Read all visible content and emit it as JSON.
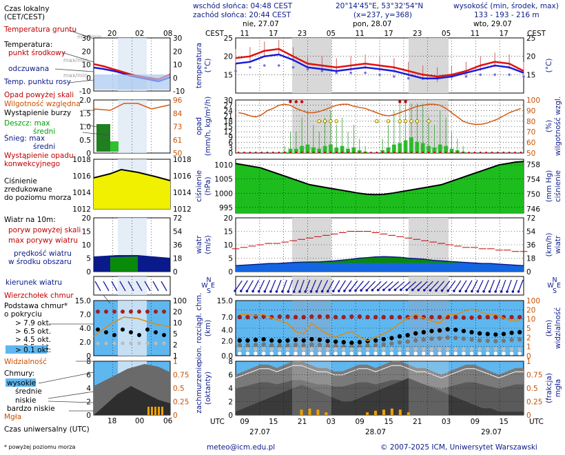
{
  "header": {
    "sunrise": "wschód słońca: 04:48 CEST",
    "sunset": "zachód słońca: 20:44 CEST",
    "coords": "20°14'45\"E, 53°32'54\"N",
    "grid": "(x=237, y=368)",
    "elevation_title": "wysokość (min, środek, max)",
    "elevation_values": "133 - 193 - 216 m"
  },
  "days": [
    "nie, 27.07",
    "pon, 28.07",
    "wto, 29.07"
  ],
  "local_time": {
    "label": "CEST",
    "hours": [
      "11",
      "17",
      "23",
      "05",
      "11",
      "17",
      "23",
      "05",
      "11",
      "17"
    ]
  },
  "utc_time": {
    "label": "UTC",
    "hours": [
      "09",
      "15",
      "21",
      "03",
      "09",
      "15",
      "21",
      "03",
      "09",
      "15"
    ],
    "dates": [
      "27.07",
      "28.07",
      "29.07"
    ]
  },
  "legend": {
    "local_time_title": "Czas lokalny",
    "local_time_sub": "(CET/CEST)",
    "local_hours": [
      "20",
      "02",
      "08"
    ],
    "soil_temp": "Temperatura gruntu",
    "soil_range": "max/min",
    "temp_title": "Temperatura:",
    "temp_mid": "punkt środkowy",
    "temp_range": "max/min",
    "temp_felt": "odczuwana",
    "temp_felt_range": "max/min",
    "dew_point": "Temp. punktu rosy",
    "precip_above": "Opad powyżej skali",
    "humidity": "Wilgotność względna",
    "storm": "Wystąpienie burzy",
    "rain_max": "Deszcz: max",
    "rain_mean": "średni",
    "snow_max": "Śnieg:     max",
    "snow_mean": "średni",
    "conv_precip_1": "Wystąpienie opadu",
    "conv_precip_2": "konwekcyjnego",
    "pressure_1": "Ciśnienie",
    "pressure_2": "zredukowane",
    "pressure_3": "do poziomu morza",
    "wind_title": "Wiatr na 10m:",
    "gust_above": "poryw powyżej skali",
    "gust_max": "max porywy wiatru",
    "wind_speed_1": "prędkość wiatru",
    "wind_speed_2": "w środku obszaru",
    "wind_dir": "kierunek wiatru",
    "cloud_top": "Wierzchołek chmur",
    "cloud_base_1": "Podstawa chmur*",
    "cloud_base_2": "o pokryciu",
    "okta_79": "> 7.9 okt.",
    "okta_65": "> 6.5 okt.",
    "okta_45": "> 4.5 okt.",
    "okta_25": "> 2.5 okt.",
    "okta_01": "> 0.1 okt.",
    "visibility": "Widzialność",
    "clouds_title": "Chmury:",
    "clouds_high": "wysokie",
    "clouds_mid": "średnie",
    "clouds_low": "niskie",
    "clouds_vlow": "bardzo niskie",
    "fog": "Mgła",
    "utc_title": "Czas uniwersalny (UTC)",
    "utc_hours": [
      "18",
      "00",
      "06"
    ],
    "footnote": "* powyżej poziomu morza"
  },
  "panel_labels": {
    "temperature": [
      "temperatura",
      "(°C)"
    ],
    "precip": [
      "opad",
      "(mm/h, kg/m²/h)"
    ],
    "humidity": [
      "wilgotność wzgl.",
      "(%)"
    ],
    "pressure": [
      "ciśnienie",
      "(hPa)"
    ],
    "pressure_mm": [
      "(mm Hg)",
      "ciśnienie"
    ],
    "wind": [
      "wiatr",
      "(m/s)"
    ],
    "wind_kmh": [
      "(km/h)",
      "wiatr"
    ],
    "cloud_height": [
      "pion. rozciągł. chm.",
      "(km)"
    ],
    "visibility": [
      "(km)",
      "widzialność"
    ],
    "cloud_cover": [
      "zachmurzenie",
      "(oktanty)"
    ],
    "fog": [
      "(frakcja)",
      "mgła"
    ],
    "compass": [
      "N",
      "W",
      "E",
      "S"
    ]
  },
  "footer": {
    "email": "meteo@icm.edu.pl",
    "copyright": "© 2007-2025 ICM, Uniwersytet Warszawski"
  },
  "colors": {
    "panel_bg": "#dfe8f5",
    "night": "#d8d8d8",
    "temp": "#e01010",
    "felt": "#1a1adc",
    "dew": "#7070e8",
    "humidity": "#d05a10",
    "pressure_dark": "#00a000",
    "pressure_light": "#40e040",
    "wind": "#1565e0",
    "cloud_sky": "#5fb7ef",
    "cloud_dark": "#3a3a3a"
  },
  "chart_data": [
    {
      "type": "line",
      "title": "temperatura",
      "x": [
        "09",
        "12",
        "15",
        "18",
        "21",
        "00",
        "03",
        "06",
        "09",
        "12",
        "15",
        "18",
        "21",
        "00",
        "03",
        "06",
        "09",
        "12",
        "15",
        "18",
        "21"
      ],
      "series": [
        {
          "name": "temperatura (punkt środkowy)",
          "values": [
            19.5,
            20,
            21.5,
            22,
            20,
            18,
            17.5,
            17,
            17.5,
            18,
            17.5,
            17,
            16,
            15,
            14.5,
            15,
            16,
            17.5,
            18.5,
            18,
            16
          ]
        },
        {
          "name": "temperatura odczuwana",
          "values": [
            18,
            18.5,
            20,
            20.5,
            19,
            17,
            16.5,
            16,
            16.5,
            17,
            16.5,
            16,
            15,
            14,
            14,
            14.5,
            15.5,
            16.5,
            17.5,
            17,
            15.5
          ]
        },
        {
          "name": "temp. punktu rosy",
          "values": [
            16,
            17,
            17.5,
            17.5,
            17,
            16.5,
            16,
            15.5,
            15.5,
            15.5,
            15,
            14.5,
            14,
            14,
            14,
            14.5,
            14.5,
            15,
            15,
            15,
            14.5
          ]
        }
      ],
      "ylim": [
        10,
        25
      ],
      "yticks": [
        15,
        20,
        25
      ],
      "ylabel": "(°C)"
    },
    {
      "type": "bar",
      "title": "opad / wilgotność wzgl.",
      "precip_ylim": [
        0,
        30
      ],
      "precip_yticks": [
        0,
        3,
        6,
        9,
        12,
        15,
        18,
        21,
        24,
        27,
        30
      ],
      "humidity_ylim": [
        50,
        100
      ],
      "humidity_yticks": [
        50,
        60,
        70,
        80,
        90,
        100
      ],
      "precip_mean_index": [
        0,
        0,
        0,
        0,
        0,
        0,
        0,
        0,
        0.1,
        0.3,
        0.3,
        0.5,
        0.6,
        0.4,
        0.3,
        0.5,
        0.6,
        0.4,
        0.5,
        0.3,
        0.4,
        0.2,
        0.1,
        0,
        0,
        0.2,
        0.4,
        0.6,
        0.7,
        0.9,
        1.1,
        0.8,
        0.7,
        0.5,
        0.4,
        0.6,
        0.5,
        0.3,
        0.2,
        0.1,
        0,
        0,
        0,
        0,
        0,
        0,
        0,
        0,
        0,
        0
      ],
      "humidity": [
        88,
        87,
        85,
        84,
        86,
        90,
        92,
        95,
        96,
        95,
        92,
        90,
        88,
        88,
        89,
        91,
        93,
        95,
        96,
        96,
        94,
        93,
        92,
        90,
        88,
        86,
        85,
        86,
        88,
        90,
        92,
        94,
        95,
        96,
        96,
        95,
        92,
        88,
        84,
        80,
        78,
        77,
        77,
        78,
        80,
        82,
        85,
        88,
        90,
        92
      ],
      "storm_markers": "kółka na ~18 mm/h w okresie 27.07 21 UTC – 28.07 18 UTC"
    },
    {
      "type": "area",
      "title": "ciśnienie",
      "ylim": [
        993,
        1012
      ],
      "yticks": [
        995,
        1000,
        1005,
        1010
      ],
      "ylim_mmhg": [
        746,
        758
      ],
      "yticks_mmhg": [
        746,
        750,
        754,
        758
      ],
      "values": [
        1010.5,
        1010,
        1009.5,
        1009,
        1008,
        1007,
        1006,
        1005,
        1004,
        1003,
        1002.5,
        1002,
        1001.5,
        1001,
        1000.5,
        1000,
        999.6,
        999.5,
        999.6,
        1000,
        1000.5,
        1001,
        1001.5,
        1002,
        1002.5,
        1003,
        1004,
        1005,
        1006,
        1007,
        1008,
        1009,
        1010,
        1010.5,
        1011,
        1011.2
      ]
    },
    {
      "type": "area",
      "title": "wiatr",
      "ylim": [
        0,
        20
      ],
      "yticks": [
        0,
        5,
        10,
        15,
        20
      ],
      "ylim_kmh": [
        0,
        72
      ],
      "yticks_kmh": [
        0,
        18,
        36,
        54,
        72
      ],
      "speed": [
        2.2,
        2.4,
        2.6,
        2.8,
        3,
        3,
        3.2,
        3.4,
        3.5,
        3.6,
        3.6,
        3.8,
        4,
        4.3,
        4.6,
        5,
        5.2,
        5.5,
        5.6,
        5.5,
        5.3,
        5,
        4.8,
        4.6,
        4.2,
        4,
        3.8,
        3.6,
        3.4,
        3.2,
        3,
        3,
        2.8,
        2.6,
        2.4,
        2.2
      ],
      "gust_max": [
        8.5,
        9,
        9.5,
        10,
        10.5,
        10.5,
        11,
        11.5,
        12,
        12.5,
        13,
        13.5,
        14,
        14.5,
        15,
        15,
        15,
        14.5,
        14,
        13.5,
        13,
        12.5,
        12,
        11.5,
        11,
        10.5,
        10,
        9.5,
        9,
        9,
        8.5,
        8.5,
        8,
        8,
        7.5,
        7.5
      ]
    },
    {
      "type": "scatter",
      "title": "pion. rozciągł. chm. / widzialność",
      "ylim": [
        0,
        15
      ],
      "yticks": [
        0,
        2.5,
        5,
        7.5,
        10,
        12.5,
        15
      ],
      "ytick_labels": [
        "0.0",
        "2.0",
        "4.0",
        "7.0",
        "15.0"
      ],
      "vis_ylim": [
        0,
        100
      ],
      "vis_ticks": [
        "0",
        "1",
        "2",
        "5",
        "10",
        "20",
        "100"
      ],
      "cloud_top_km": [
        7.5,
        7.5,
        7.6,
        7.6,
        7.5,
        7.6,
        7.6,
        7.5,
        7.5,
        7.6,
        7.6,
        7.6,
        7.5,
        7.5,
        7.6,
        7.6,
        7.5,
        7.5,
        7.5,
        7.5,
        7.5,
        7.5,
        7.5,
        7.5,
        7.5,
        7.5,
        7.5,
        7.5,
        7.4,
        7.4,
        7.5,
        7.5,
        7.5,
        7.5,
        7.5,
        7.5
      ],
      "cloud_base_79_km": [
        2.6,
        2.6,
        2.7,
        2.8,
        2.6,
        2.5,
        2.6,
        2.7,
        2.6,
        2.8,
        2.7,
        2.5,
        2.4,
        2.3,
        2.2,
        2.3,
        2.5,
        2.6,
        2.8,
        3,
        3.3,
        3.5,
        3.8,
        4,
        4.2,
        4.3,
        4.5,
        4.4,
        4.2,
        4,
        3.8,
        3.7,
        3.6,
        3.7,
        3.9,
        4
      ],
      "visibility_km": [
        20,
        20,
        18,
        20,
        15,
        12,
        10,
        5,
        4,
        10,
        6,
        4,
        3,
        4,
        5,
        3,
        2,
        3,
        4,
        6,
        10,
        15,
        20,
        15,
        12,
        10,
        20,
        20,
        25,
        30,
        25,
        20,
        20,
        15,
        12,
        12
      ]
    },
    {
      "type": "area",
      "title": "zachmurzenie (oktanty) / mgła (frakcja)",
      "ylim": [
        0,
        8
      ],
      "yticks": [
        0,
        2,
        4,
        6,
        8
      ],
      "fog_ylim": [
        0,
        1
      ],
      "fog_yticks": [
        "0",
        "0.25",
        "0.5",
        "0.75",
        "1"
      ],
      "high": [
        6,
        6.5,
        7,
        7.5,
        7.5,
        7,
        7.5,
        8,
        8,
        7.5,
        7,
        7,
        6.5,
        6.5,
        7,
        7.5,
        7.5,
        7,
        7.5,
        8,
        8,
        7.5,
        7,
        7,
        6.5,
        6,
        6.5,
        7,
        7.5,
        7.5,
        7,
        6.5,
        6,
        6.5,
        7,
        7
      ],
      "low": [
        0.5,
        1,
        1.5,
        2,
        2.5,
        3,
        3.5,
        4,
        4.5,
        4,
        3.5,
        3,
        2.5,
        2,
        2,
        2.5,
        3,
        3.5,
        4,
        4.5,
        5,
        5.5,
        5,
        4.5,
        4,
        3.5,
        3,
        2.5,
        2,
        1.5,
        1,
        1,
        0.5,
        0.5,
        0.5,
        0.5
      ],
      "fog": [
        0,
        0,
        0,
        0,
        0,
        0,
        0,
        0,
        0.1,
        0.12,
        0.1,
        0.05,
        0,
        0,
        0,
        0,
        0.05,
        0.08,
        0.1,
        0.12,
        0.1,
        0.05,
        0,
        0,
        0,
        0,
        0,
        0,
        0,
        0,
        0,
        0,
        0,
        0,
        0,
        0
      ]
    }
  ]
}
